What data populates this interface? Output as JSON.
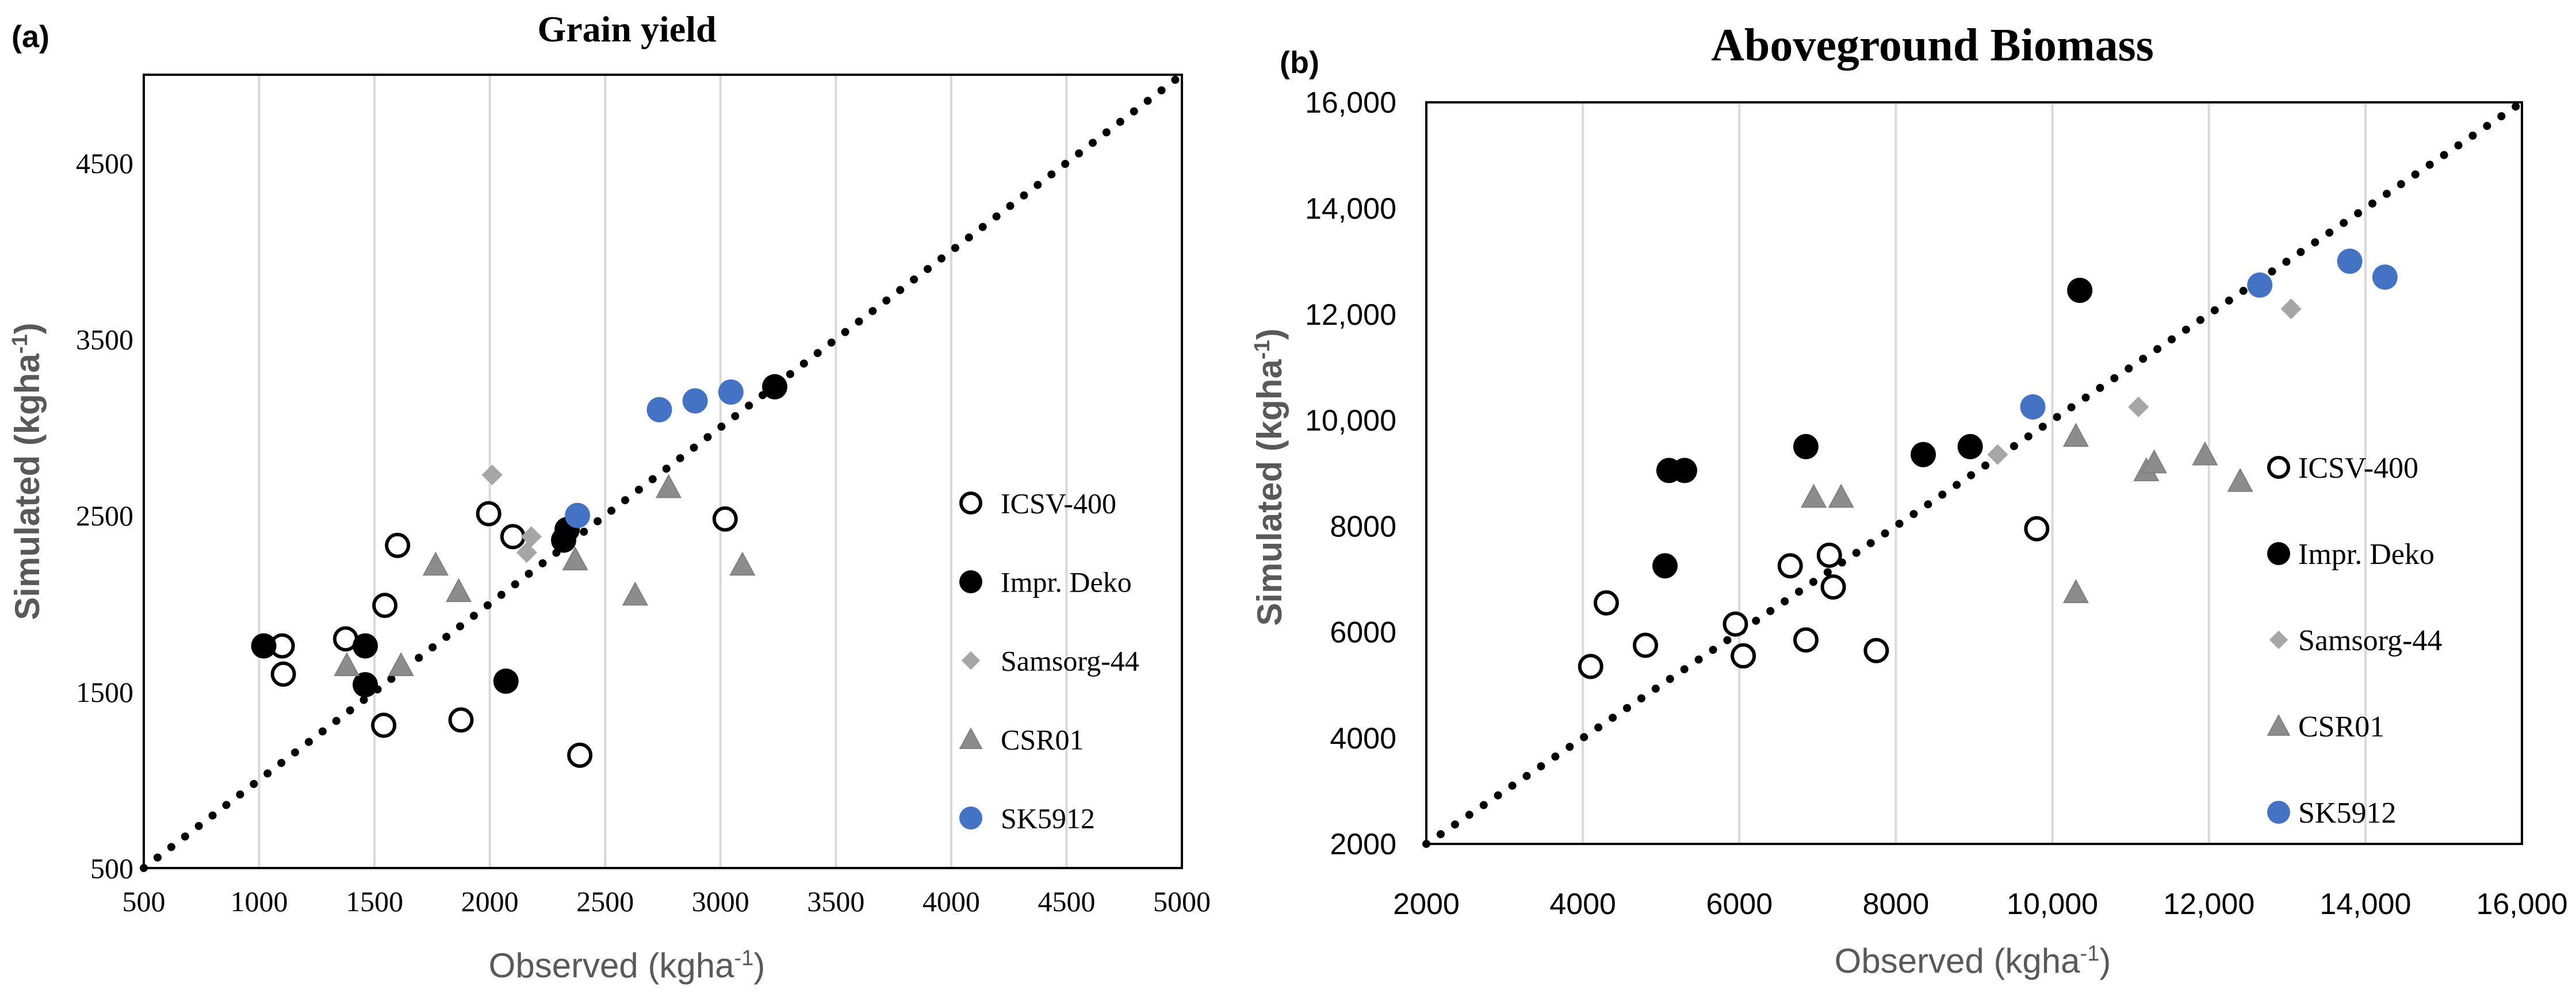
{
  "chart_data": [
    {
      "panel_label": "(a)",
      "type": "scatter",
      "title": "Grain yield",
      "xlabel": "Observed (kgha",
      "ylabel": "Simulated (kgha",
      "unit_superscript": "-1",
      "xlim": [
        500,
        5000
      ],
      "ylim": [
        500,
        5000
      ],
      "x_ticks": [
        500,
        1000,
        1500,
        2000,
        2500,
        3000,
        3500,
        4000,
        4500,
        5000
      ],
      "x_tick_labels": [
        "500",
        "1000",
        "1500",
        "2000",
        "2500",
        "3000",
        "3500",
        "4000",
        "4500",
        "5000"
      ],
      "y_ticks": [
        500,
        1500,
        2500,
        3500,
        4500
      ],
      "y_tick_labels": [
        "500",
        "1500",
        "2500",
        "3500",
        "4500"
      ],
      "vertical_grid": true,
      "one_to_one_line": [
        500,
        5000
      ],
      "legend_position": "right",
      "series": [
        {
          "name": "ICSV-400",
          "marker": "circle-open",
          "color": "#000000",
          "x": [
            1100,
            1105,
            1375,
            1545,
            1600,
            1540,
            1875,
            1995,
            2100,
            2390,
            3020
          ],
          "y": [
            1760,
            1600,
            1800,
            1990,
            2330,
            1310,
            1340,
            2510,
            2380,
            1140,
            2480
          ]
        },
        {
          "name": "Impr. Deko",
          "marker": "circle-filled",
          "color": "#000000",
          "x": [
            1020,
            1460,
            1460,
            2070,
            2320,
            2335,
            3235
          ],
          "y": [
            1760,
            1760,
            1540,
            1560,
            2360,
            2420,
            3230
          ]
        },
        {
          "name": "Samsorg-44",
          "marker": "diamond",
          "color": "#a6a6a6",
          "x": [
            2010,
            2160,
            2180
          ],
          "y": [
            2730,
            2290,
            2380
          ]
        },
        {
          "name": "CSR01",
          "marker": "triangle",
          "color": "#8c8c8c",
          "x": [
            1380,
            1615,
            1765,
            1865,
            2370,
            2630,
            2775,
            3095
          ],
          "y": [
            1650,
            1650,
            2220,
            2070,
            2250,
            2050,
            2660,
            2220
          ]
        },
        {
          "name": "SK5912",
          "marker": "circle-filled",
          "color": "#4472c4",
          "x": [
            2380,
            2735,
            2890,
            3045
          ],
          "y": [
            2500,
            3100,
            3150,
            3200
          ]
        }
      ]
    },
    {
      "panel_label": "(b)",
      "type": "scatter",
      "title": "Aboveground Biomass",
      "xlabel": "Observed (kgha",
      "ylabel": "Simulated (kgha",
      "unit_superscript": "-1",
      "xlim": [
        2000,
        16000
      ],
      "ylim": [
        2000,
        16000
      ],
      "x_ticks": [
        2000,
        4000,
        6000,
        8000,
        10000,
        12000,
        14000,
        16000
      ],
      "x_tick_labels": [
        "2000",
        "4000",
        "6000",
        "8000",
        "10,000",
        "12,000",
        "14,000",
        "16,000"
      ],
      "y_ticks": [
        2000,
        4000,
        6000,
        8000,
        10000,
        12000,
        14000,
        16000
      ],
      "y_tick_labels": [
        "2000",
        "4000",
        "6000",
        "8000",
        "10,000",
        "12,000",
        "14,000",
        "16,000"
      ],
      "vertical_grid": true,
      "one_to_one_line": [
        2000,
        16000
      ],
      "legend_position": "right",
      "series": [
        {
          "name": "ICSV-400",
          "marker": "circle-open",
          "color": "#000000",
          "x": [
            4100,
            4300,
            4800,
            5950,
            6050,
            6650,
            6850,
            7150,
            7200,
            7750,
            9800
          ],
          "y": [
            5350,
            6550,
            5750,
            6150,
            5550,
            7250,
            5850,
            7450,
            6850,
            5650,
            7950
          ]
        },
        {
          "name": "Impr. Deko",
          "marker": "circle-filled",
          "color": "#000000",
          "x": [
            5050,
            5100,
            5300,
            6850,
            8350,
            8950,
            10350
          ],
          "y": [
            7250,
            9050,
            9050,
            9500,
            9350,
            9500,
            12450
          ]
        },
        {
          "name": "Samsorg-44",
          "marker": "diamond",
          "color": "#a6a6a6",
          "x": [
            9300,
            11100,
            13050
          ],
          "y": [
            9350,
            10250,
            12100
          ]
        },
        {
          "name": "CSR01",
          "marker": "triangle",
          "color": "#8c8c8c",
          "x": [
            6950,
            7300,
            10300,
            10300,
            11200,
            11300,
            11950,
            12400
          ],
          "y": [
            8550,
            8550,
            9700,
            6750,
            9050,
            9200,
            9350,
            8850
          ]
        },
        {
          "name": "SK5912",
          "marker": "circle-filled",
          "color": "#4472c4",
          "x": [
            9750,
            12650,
            13800,
            14250
          ],
          "y": [
            10250,
            12550,
            13000,
            12700
          ]
        }
      ]
    }
  ]
}
